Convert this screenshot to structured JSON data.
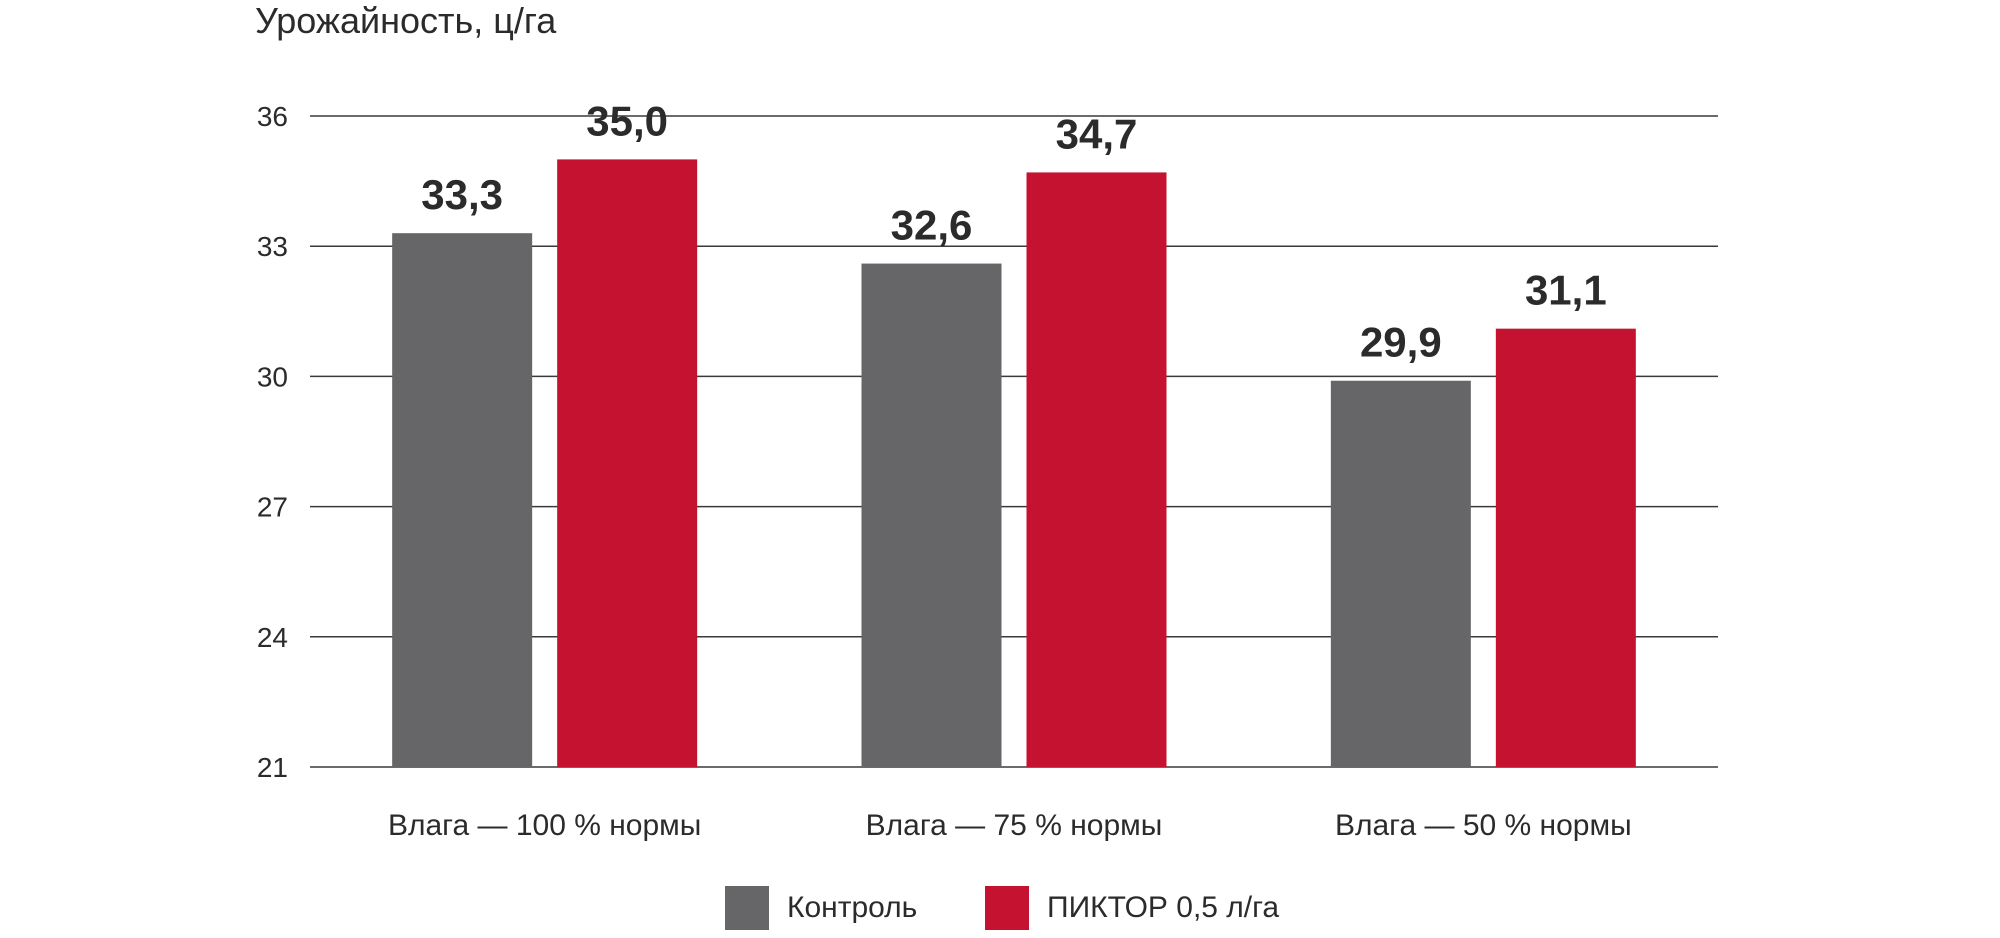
{
  "chart_data": {
    "type": "bar",
    "title": "",
    "xlabel": "",
    "ylabel": "Урожайность, ц/га",
    "ylim": [
      21,
      36
    ],
    "yticks": [
      "21",
      "24",
      "27",
      "30",
      "33",
      "36"
    ],
    "categories": [
      "Влага — 100 % нормы",
      "Влага — 75 % нормы",
      "Влага — 50 % нормы"
    ],
    "series": [
      {
        "name": "Контроль",
        "color": "#666668",
        "values": [
          33.3,
          32.6,
          29.9
        ],
        "labels": [
          "33,3",
          "32,6",
          "29,9"
        ]
      },
      {
        "name": "ПИКТОР 0,5 л/га",
        "color": "#c41230",
        "values": [
          35.0,
          34.7,
          31.1
        ],
        "labels": [
          "35,0",
          "34,7",
          "31,1"
        ]
      }
    ],
    "grid": true,
    "legend_position": "bottom-center"
  }
}
